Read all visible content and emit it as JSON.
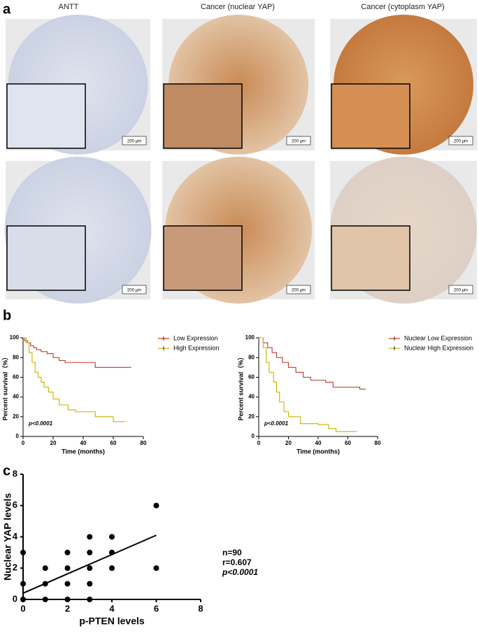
{
  "panel_labels": [
    "a",
    "b",
    "c"
  ],
  "histology": {
    "columns": [
      "ANTT",
      "Cancer (nuclear YAP)",
      "Cancer (cytoplasm YAP)"
    ],
    "scale_bar": "200 µm"
  },
  "chart_data": [
    {
      "type": "line",
      "xlabel": "Time (months)",
      "ylabel": "Percent survival（%）",
      "annotation": "p<0.0001",
      "xlim": [
        0,
        80
      ],
      "xticks": [
        0,
        20,
        40,
        60,
        80
      ],
      "ylim": [
        0,
        100
      ],
      "yticks": [
        0,
        20,
        40,
        60,
        80,
        100
      ],
      "series": [
        {
          "name": "Low Expression",
          "color": "#c0392b",
          "x": [
            0,
            1,
            1,
            3,
            3,
            5,
            5,
            7,
            7,
            9,
            9,
            12,
            12,
            16,
            16,
            20,
            20,
            24,
            24,
            28,
            28,
            48,
            48,
            72
          ],
          "values": [
            100,
            100,
            97,
            97,
            95,
            95,
            92,
            92,
            90,
            90,
            88,
            88,
            86,
            86,
            84,
            84,
            80,
            80,
            77,
            77,
            75,
            75,
            70,
            70
          ]
        },
        {
          "name": "High Expression",
          "color": "#c9b200",
          "x": [
            0,
            2,
            2,
            4,
            4,
            6,
            6,
            8,
            8,
            10,
            10,
            12,
            12,
            14,
            14,
            17,
            17,
            20,
            20,
            24,
            24,
            30,
            30,
            35,
            35,
            48,
            48,
            60,
            60,
            68
          ],
          "values": [
            100,
            100,
            95,
            95,
            85,
            85,
            75,
            75,
            65,
            65,
            60,
            60,
            55,
            55,
            50,
            50,
            45,
            45,
            38,
            38,
            32,
            32,
            27,
            27,
            25,
            25,
            20,
            20,
            15,
            15
          ]
        }
      ]
    },
    {
      "type": "line",
      "xlabel": "Time (months)",
      "ylabel": "Percent survival（%）",
      "annotation": "p<0.0001",
      "xlim": [
        0,
        80
      ],
      "xticks": [
        0,
        20,
        40,
        60,
        80
      ],
      "ylim": [
        0,
        100
      ],
      "yticks": [
        0,
        20,
        40,
        60,
        80,
        100
      ],
      "series": [
        {
          "name": "Nuclear Low Expression",
          "color": "#c0392b",
          "x": [
            0,
            3,
            3,
            6,
            6,
            9,
            9,
            12,
            12,
            16,
            16,
            20,
            20,
            25,
            25,
            30,
            30,
            35,
            35,
            45,
            45,
            50,
            50,
            68,
            68,
            72
          ],
          "values": [
            100,
            100,
            95,
            95,
            90,
            90,
            85,
            85,
            80,
            80,
            75,
            75,
            70,
            70,
            65,
            65,
            60,
            60,
            57,
            57,
            55,
            55,
            50,
            50,
            48,
            48
          ]
        },
        {
          "name": "Nuclear High Expression",
          "color": "#c9b200",
          "x": [
            0,
            3,
            3,
            5,
            5,
            7,
            7,
            10,
            10,
            12,
            12,
            14,
            14,
            17,
            17,
            20,
            20,
            28,
            28,
            40,
            40,
            47,
            47,
            52,
            52,
            66
          ],
          "values": [
            100,
            100,
            90,
            90,
            75,
            75,
            65,
            65,
            55,
            55,
            45,
            45,
            35,
            35,
            25,
            25,
            20,
            20,
            13,
            13,
            12,
            12,
            8,
            8,
            5,
            5
          ]
        }
      ]
    },
    {
      "type": "scatter",
      "xlabel": "p-PTEN levels",
      "ylabel": "Nuclear YAP levels",
      "annotations": [
        "n=90",
        "r=0.607",
        "p<0.0001"
      ],
      "xlim": [
        0,
        8
      ],
      "xticks": [
        0,
        2,
        4,
        6,
        8
      ],
      "ylim": [
        0,
        8
      ],
      "yticks": [
        0,
        2,
        4,
        6,
        8
      ],
      "color": "#000000",
      "x": [
        0,
        0,
        0,
        1,
        1,
        1,
        2,
        2,
        2,
        2,
        3,
        3,
        3,
        3,
        3,
        4,
        4,
        4,
        6,
        6
      ],
      "values": [
        3,
        1,
        0,
        2,
        1,
        0,
        3,
        2,
        1,
        0,
        4,
        3,
        2,
        1,
        0,
        4,
        3,
        2,
        6,
        2
      ],
      "fit_line": {
        "x": [
          0,
          6
        ],
        "values": [
          0.4,
          4.1
        ]
      }
    }
  ]
}
